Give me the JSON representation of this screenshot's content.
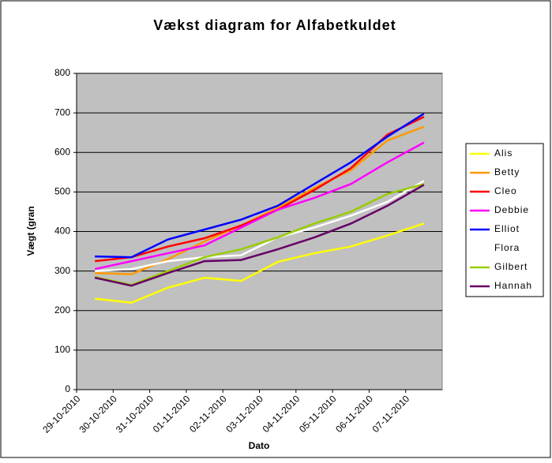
{
  "chart_data": {
    "type": "line",
    "title": "Vækst diagram for Alfabetkuldet",
    "x_label": "Dato",
    "y_label": "Vægt (gran",
    "categories": [
      "29-10-2010",
      "30-10-2010",
      "31-10-2010",
      "01-11-2010",
      "02-11-2010",
      "03-11-2010",
      "04-11-2010",
      "05-11-2010",
      "06-11-2010",
      "07-11-2010"
    ],
    "series": [
      {
        "name": "Alis",
        "color": "#ffff00",
        "values": [
          230,
          220,
          258,
          283,
          275,
          323,
          345,
          362,
          390,
          420
        ]
      },
      {
        "name": "Betty",
        "color": "#ff9900",
        "values": [
          295,
          292,
          330,
          375,
          415,
          460,
          510,
          555,
          630,
          665
        ]
      },
      {
        "name": "Cleo",
        "color": "#ff0000",
        "values": [
          325,
          335,
          362,
          383,
          415,
          455,
          505,
          560,
          645,
          690
        ]
      },
      {
        "name": "Debbie",
        "color": "#ff00ff",
        "values": [
          305,
          325,
          345,
          365,
          410,
          455,
          485,
          520,
          575,
          625
        ]
      },
      {
        "name": "Elliot",
        "color": "#0000ff",
        "values": [
          337,
          335,
          380,
          405,
          430,
          465,
          520,
          575,
          640,
          698
        ]
      },
      {
        "name": "Flora",
        "color": "#ffffff",
        "values": [
          300,
          305,
          325,
          335,
          340,
          385,
          410,
          440,
          475,
          528
        ]
      },
      {
        "name": "Gilbert",
        "color": "#99cc00",
        "values": [
          285,
          265,
          300,
          335,
          355,
          385,
          420,
          450,
          495,
          520
        ]
      },
      {
        "name": "Hannah",
        "color": "#660066",
        "values": [
          283,
          263,
          295,
          325,
          328,
          355,
          385,
          420,
          465,
          518
        ]
      }
    ],
    "ylim": [
      0,
      800
    ],
    "yticks": [
      0,
      100,
      200,
      300,
      400,
      500,
      600,
      700,
      800
    ],
    "grid": true,
    "legend": "right",
    "plot_background": "#c0c0c0"
  }
}
